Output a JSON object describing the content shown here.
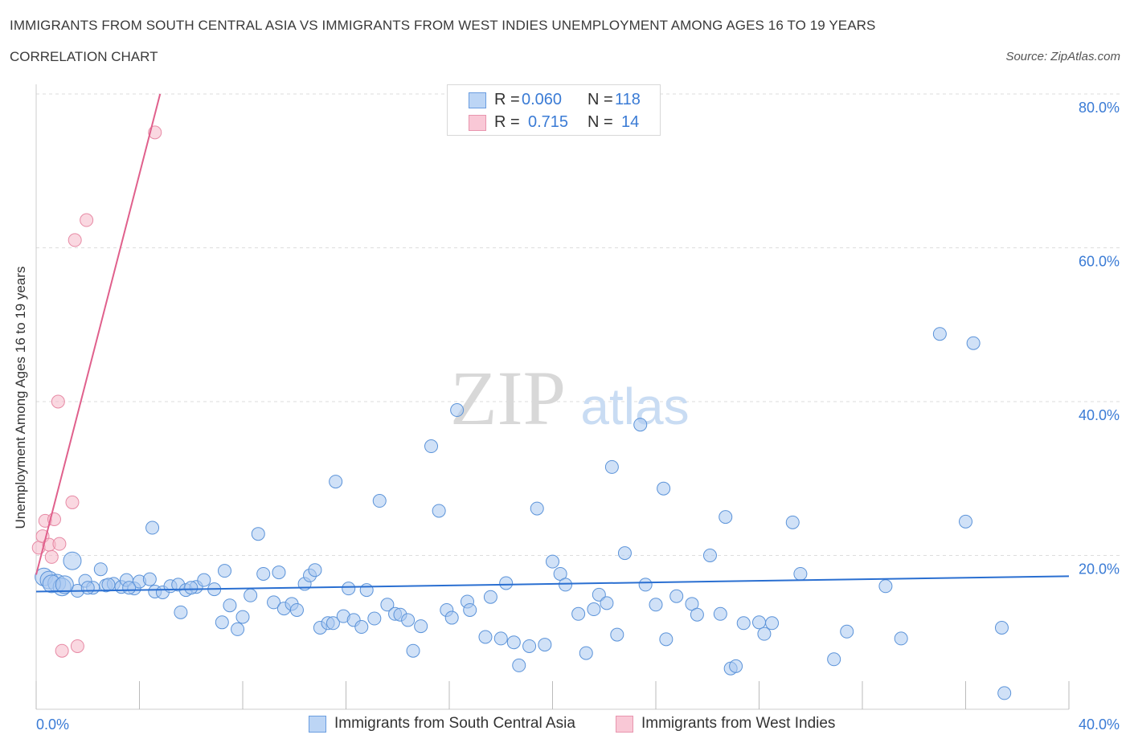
{
  "header": {
    "title": "IMMIGRANTS FROM SOUTH CENTRAL ASIA VS IMMIGRANTS FROM WEST INDIES UNEMPLOYMENT AMONG AGES 16 TO 19 YEARS",
    "subtitle": "CORRELATION CHART",
    "source": "Source: ZipAtlas.com"
  },
  "watermark": {
    "zip": "ZIP",
    "atlas": "atlas"
  },
  "legend": {
    "rows": [
      {
        "r_label": "R =",
        "r_value": "0.060",
        "n_label": "N =",
        "n_value": "118"
      },
      {
        "r_label": "R =",
        "r_value": "0.715",
        "n_label": "N =",
        "n_value": "14"
      }
    ]
  },
  "colors": {
    "blue_fill": "#a9c8f0",
    "blue_stroke": "#5b93d9",
    "blue_line": "#2a6fd1",
    "pink_fill": "#f6b8c9",
    "pink_stroke": "#e78aa5",
    "pink_line": "#e0608c",
    "axis_text": "#3a7bd5",
    "grid": "#dddddd"
  },
  "chart_data": {
    "type": "scatter",
    "title": "IMMIGRANTS FROM SOUTH CENTRAL ASIA VS IMMIGRANTS FROM WEST INDIES UNEMPLOYMENT AMONG AGES 16 TO 19 YEARS",
    "xlabel": "",
    "ylabel": "Unemployment Among Ages 16 to 19 years",
    "xlim": [
      0,
      40
    ],
    "ylim": [
      0,
      80
    ],
    "x_tick_labels": [
      "0.0%",
      "40.0%"
    ],
    "y_tick_labels": [
      "20.0%",
      "40.0%",
      "60.0%",
      "80.0%"
    ],
    "y_ticks": [
      20,
      40,
      60,
      80
    ],
    "grid": true,
    "legend_position": "bottom",
    "series": [
      {
        "name": "Immigrants from South Central Asia",
        "trend": {
          "x": [
            0,
            40
          ],
          "y": [
            15.3,
            17.3
          ]
        },
        "points": [
          [
            0.3,
            17.2
          ],
          [
            0.5,
            16.8
          ],
          [
            0.8,
            16.4
          ],
          [
            1.0,
            15.9
          ],
          [
            1.4,
            19.3
          ],
          [
            1.6,
            15.4
          ],
          [
            1.9,
            16.7
          ],
          [
            2.2,
            15.8
          ],
          [
            2.5,
            18.2
          ],
          [
            2.7,
            16.1
          ],
          [
            3.0,
            16.3
          ],
          [
            3.3,
            15.9
          ],
          [
            3.5,
            16.8
          ],
          [
            3.8,
            15.7
          ],
          [
            4.0,
            16.6
          ],
          [
            4.4,
            16.9
          ],
          [
            4.6,
            15.3
          ],
          [
            4.9,
            15.2
          ],
          [
            5.2,
            16.0
          ],
          [
            5.6,
            12.6
          ],
          [
            4.5,
            23.6
          ],
          [
            5.5,
            16.2
          ],
          [
            5.8,
            15.5
          ],
          [
            6.2,
            15.9
          ],
          [
            6.5,
            16.8
          ],
          [
            6.9,
            15.6
          ],
          [
            7.2,
            11.3
          ],
          [
            7.5,
            13.5
          ],
          [
            7.3,
            18.0
          ],
          [
            7.8,
            10.4
          ],
          [
            8.0,
            12.0
          ],
          [
            8.3,
            14.8
          ],
          [
            8.6,
            22.8
          ],
          [
            8.8,
            17.6
          ],
          [
            9.2,
            13.9
          ],
          [
            9.4,
            17.8
          ],
          [
            9.6,
            13.1
          ],
          [
            9.9,
            13.7
          ],
          [
            10.1,
            12.9
          ],
          [
            10.4,
            16.3
          ],
          [
            10.6,
            17.4
          ],
          [
            10.8,
            18.1
          ],
          [
            11.0,
            10.6
          ],
          [
            11.3,
            11.2
          ],
          [
            11.5,
            11.2
          ],
          [
            11.6,
            29.6
          ],
          [
            11.9,
            12.1
          ],
          [
            12.1,
            15.7
          ],
          [
            12.3,
            11.6
          ],
          [
            12.6,
            10.7
          ],
          [
            12.8,
            15.5
          ],
          [
            13.1,
            11.8
          ],
          [
            13.3,
            27.1
          ],
          [
            13.6,
            13.6
          ],
          [
            13.9,
            12.4
          ],
          [
            14.1,
            12.3
          ],
          [
            14.4,
            11.6
          ],
          [
            14.6,
            7.6
          ],
          [
            14.9,
            10.8
          ],
          [
            15.3,
            34.2
          ],
          [
            15.6,
            25.8
          ],
          [
            15.9,
            12.9
          ],
          [
            16.1,
            11.9
          ],
          [
            16.3,
            38.9
          ],
          [
            16.7,
            14.0
          ],
          [
            16.8,
            12.9
          ],
          [
            17.4,
            9.4
          ],
          [
            17.6,
            14.6
          ],
          [
            18.0,
            9.2
          ],
          [
            18.2,
            16.4
          ],
          [
            18.5,
            8.7
          ],
          [
            18.7,
            5.7
          ],
          [
            19.1,
            8.2
          ],
          [
            19.4,
            26.1
          ],
          [
            19.7,
            8.4
          ],
          [
            20.0,
            19.2
          ],
          [
            20.3,
            17.6
          ],
          [
            20.5,
            16.2
          ],
          [
            21.0,
            12.4
          ],
          [
            21.3,
            7.3
          ],
          [
            21.6,
            13.0
          ],
          [
            21.8,
            14.9
          ],
          [
            22.1,
            13.8
          ],
          [
            22.3,
            31.5
          ],
          [
            22.5,
            9.7
          ],
          [
            22.8,
            20.3
          ],
          [
            23.4,
            37.0
          ],
          [
            23.6,
            16.2
          ],
          [
            24.0,
            13.6
          ],
          [
            24.3,
            28.7
          ],
          [
            24.4,
            9.1
          ],
          [
            24.8,
            14.7
          ],
          [
            25.4,
            13.7
          ],
          [
            25.6,
            12.3
          ],
          [
            26.1,
            20.0
          ],
          [
            26.5,
            12.4
          ],
          [
            26.7,
            25.0
          ],
          [
            26.9,
            5.3
          ],
          [
            27.1,
            5.6
          ],
          [
            27.4,
            11.2
          ],
          [
            28.0,
            11.3
          ],
          [
            28.2,
            9.8
          ],
          [
            28.5,
            11.2
          ],
          [
            29.3,
            24.3
          ],
          [
            29.6,
            17.6
          ],
          [
            30.9,
            6.5
          ],
          [
            31.4,
            10.1
          ],
          [
            32.9,
            16.0
          ],
          [
            33.5,
            9.2
          ],
          [
            35.0,
            48.8
          ],
          [
            36.0,
            24.4
          ],
          [
            36.3,
            47.6
          ],
          [
            37.4,
            10.6
          ],
          [
            37.5,
            2.1
          ],
          [
            0.6,
            16.3
          ],
          [
            1.1,
            16.2
          ],
          [
            2.0,
            15.8
          ],
          [
            2.8,
            16.2
          ],
          [
            3.6,
            15.8
          ],
          [
            6.0,
            15.8
          ]
        ]
      },
      {
        "name": "Immigrants from West Indies",
        "trend": {
          "x": [
            0,
            4.8
          ],
          "y": [
            17.5,
            80
          ]
        },
        "points": [
          [
            0.1,
            21.0
          ],
          [
            0.25,
            22.5
          ],
          [
            0.35,
            24.5
          ],
          [
            0.5,
            21.4
          ],
          [
            0.6,
            19.8
          ],
          [
            0.7,
            24.7
          ],
          [
            0.85,
            40.0
          ],
          [
            0.9,
            21.5
          ],
          [
            1.0,
            7.6
          ],
          [
            1.4,
            26.9
          ],
          [
            1.5,
            61.0
          ],
          [
            1.6,
            8.2
          ],
          [
            1.95,
            63.6
          ],
          [
            4.6,
            75.0
          ]
        ]
      }
    ]
  }
}
